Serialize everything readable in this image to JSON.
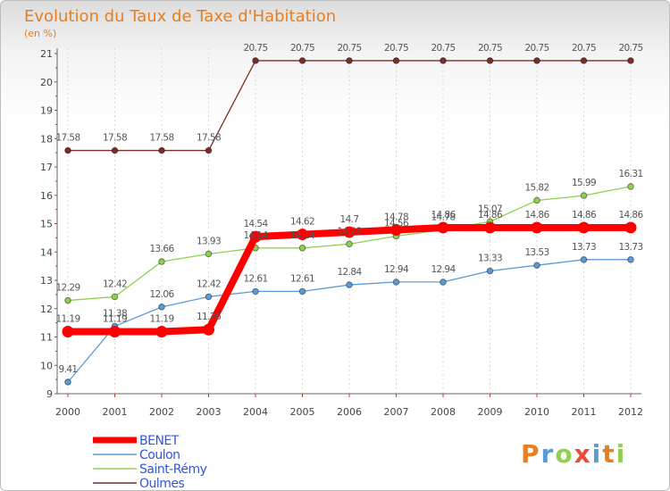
{
  "chart_data": {
    "type": "line",
    "title": "Evolution du Taux de Taxe d'Habitation",
    "ylabel": "(en %)",
    "xlabel": "",
    "categories": [
      "2000",
      "2001",
      "2002",
      "2003",
      "2004",
      "2005",
      "2006",
      "2007",
      "2008",
      "2009",
      "2010",
      "2011",
      "2012"
    ],
    "ylim": [
      9,
      21
    ],
    "yticks": [
      9,
      10,
      11,
      12,
      13,
      14,
      15,
      16,
      17,
      18,
      19,
      20,
      21
    ],
    "series": [
      {
        "name": "BENET",
        "color": "#ff0000",
        "values": [
          11.19,
          11.19,
          11.19,
          11.26,
          14.54,
          14.62,
          14.7,
          14.78,
          14.86,
          14.86,
          14.86,
          14.86,
          14.86
        ],
        "labels": [
          "11.19",
          "11.19",
          "11.19",
          "11.26",
          "14.54",
          "14.62",
          "14.7",
          "14.78",
          "14.86",
          "14.86",
          "14.86",
          "14.86",
          "14.86"
        ]
      },
      {
        "name": "Coulon",
        "color": "#5b9bd5",
        "values": [
          9.41,
          11.38,
          12.06,
          12.42,
          12.61,
          12.61,
          12.84,
          12.94,
          12.94,
          13.33,
          13.53,
          13.73,
          13.73
        ],
        "labels": [
          "9.41",
          "11.38",
          "12.06",
          "12.42",
          "12.61",
          "12.61",
          "12.84",
          "12.94",
          "12.94",
          "13.33",
          "13.53",
          "13.73",
          "13.73"
        ]
      },
      {
        "name": "Saint-Rémy",
        "color": "#8fd14f",
        "values": [
          12.29,
          12.42,
          13.66,
          13.93,
          14.14,
          14.14,
          14.28,
          14.56,
          14.78,
          15.07,
          15.82,
          15.99,
          16.31
        ],
        "labels": [
          "12.29",
          "12.42",
          "13.66",
          "13.93",
          "14.14",
          "14.14",
          "14.28",
          "14.56",
          "14.78",
          "15.07",
          "15.82",
          "15.99",
          "16.31"
        ]
      },
      {
        "name": "Oulmes",
        "color": "#7b2d26",
        "values": [
          17.58,
          17.58,
          17.58,
          17.58,
          20.75,
          20.75,
          20.75,
          20.75,
          20.75,
          20.75,
          20.75,
          20.75,
          20.75
        ],
        "labels": [
          "17.58",
          "17.58",
          "17.58",
          "17.58",
          "20.75",
          "20.75",
          "20.75",
          "20.75",
          "20.75",
          "20.75",
          "20.75",
          "20.75",
          "20.75"
        ]
      }
    ],
    "legend_position": "bottom-left"
  },
  "branding": {
    "logo_text": "Proxiti",
    "logo_colors": [
      "#e67e22",
      "#5b9bd5",
      "#8fd14f",
      "#e74c3c",
      "#5b9bd5",
      "#e67e22",
      "#8fd14f"
    ]
  },
  "colors": {
    "title": "#e67e22",
    "legend_text": "#3355dd",
    "axis": "#666666",
    "grid": "#d9d9d9"
  }
}
